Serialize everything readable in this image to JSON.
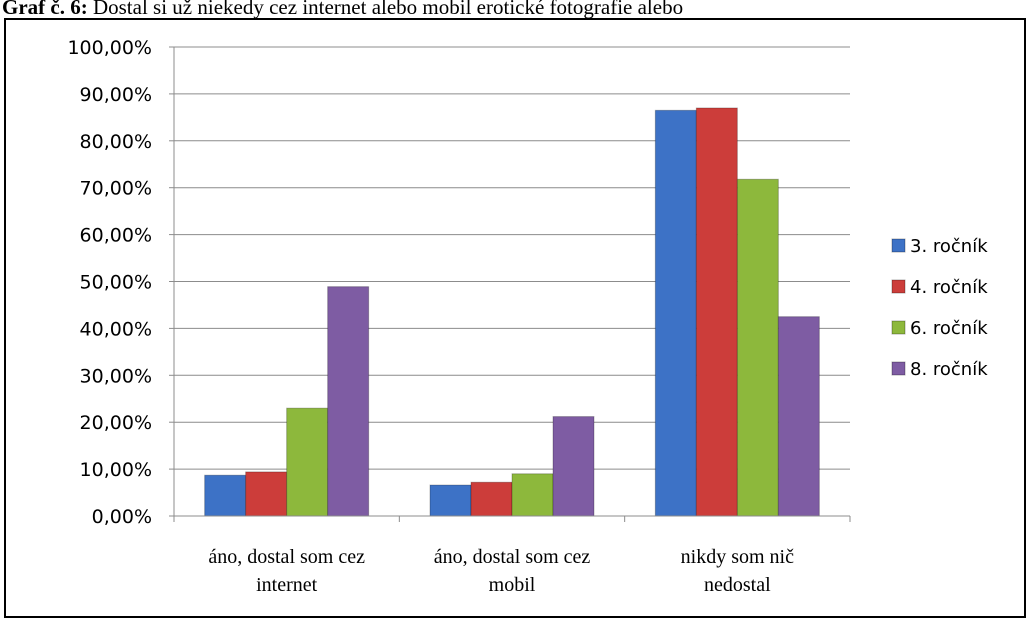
{
  "title": {
    "lead": "Graf č. 6:",
    "text": "Dostal si už niekedy cez internet alebo mobil erotické fotografie alebo"
  },
  "chart_data": {
    "type": "bar",
    "categories": [
      [
        "áno, dostal som cez",
        "internet"
      ],
      [
        "áno, dostal som cez",
        "mobil"
      ],
      [
        "nikdy som nič",
        "nedostal"
      ]
    ],
    "series": [
      {
        "name": "3. ročník",
        "color": "#3d72c6",
        "values": [
          8.7,
          6.6,
          86.5
        ]
      },
      {
        "name": "4. ročník",
        "color": "#cc3d3a",
        "values": [
          9.4,
          7.2,
          87.0
        ]
      },
      {
        "name": "6. ročník",
        "color": "#8db83c",
        "values": [
          23.0,
          9.0,
          71.8
        ]
      },
      {
        "name": "8. ročník",
        "color": "#7e5ca3",
        "values": [
          48.9,
          21.2,
          42.5
        ]
      }
    ],
    "yticks": [
      "0,00%",
      "10,00%",
      "20,00%",
      "30,00%",
      "40,00%",
      "50,00%",
      "60,00%",
      "70,00%",
      "80,00%",
      "90,00%",
      "100,00%"
    ],
    "ylim": [
      0,
      100
    ],
    "grid": true,
    "legend_position": "right"
  }
}
